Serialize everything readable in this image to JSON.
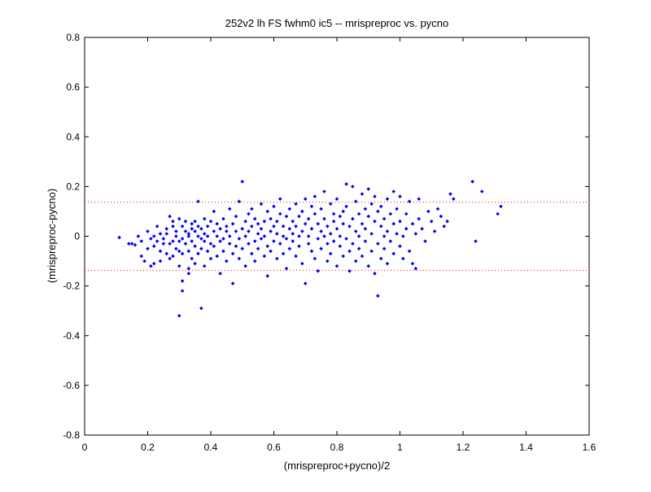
{
  "chart_data": {
    "type": "scatter",
    "title": "252v2 lh FS fwhm0 ic5 -- mrispreproc vs. pycno",
    "xlabel": "(mrispreproc+pycno)/2",
    "ylabel": "(mrispreproc-pycno)",
    "xlim": [
      0,
      1.6
    ],
    "ylim": [
      -0.8,
      0.8
    ],
    "xticks": [
      "0",
      "0.2",
      "0.4",
      "0.6",
      "0.8",
      "1",
      "1.2",
      "1.4",
      "1.6"
    ],
    "yticks": [
      "-0.8",
      "-0.6",
      "-0.4",
      "-0.2",
      "0",
      "0.2",
      "0.4",
      "0.6",
      "0.8"
    ],
    "grid": false,
    "point_color": "#0000ff",
    "reference_line_color": "#ff0000",
    "reference_lines_y": [
      0.137,
      -0.137
    ],
    "series": [
      {
        "points": [
          [
            0.11,
            -0.005
          ],
          [
            0.14,
            -0.03
          ],
          [
            0.15,
            -0.03
          ],
          [
            0.16,
            -0.035
          ],
          [
            0.17,
            0.0
          ],
          [
            0.18,
            -0.02
          ],
          [
            0.18,
            -0.08
          ],
          [
            0.19,
            -0.1
          ],
          [
            0.2,
            0.02
          ],
          [
            0.2,
            -0.05
          ],
          [
            0.21,
            -0.01
          ],
          [
            0.21,
            -0.12
          ],
          [
            0.22,
            0.0
          ],
          [
            0.22,
            -0.04
          ],
          [
            0.22,
            -0.11
          ],
          [
            0.23,
            -0.02
          ],
          [
            0.23,
            0.04
          ],
          [
            0.24,
            -0.06
          ],
          [
            0.24,
            0.01
          ],
          [
            0.24,
            -0.1
          ],
          [
            0.25,
            -0.01
          ],
          [
            0.25,
            -0.03
          ],
          [
            0.26,
            -0.07
          ],
          [
            0.26,
            0.03
          ],
          [
            0.26,
            0.01
          ],
          [
            0.27,
            0.08
          ],
          [
            0.27,
            -0.03
          ],
          [
            0.27,
            -0.09
          ],
          [
            0.28,
            0.04
          ],
          [
            0.28,
            -0.02
          ],
          [
            0.28,
            -0.08
          ],
          [
            0.28,
            0.06
          ],
          [
            0.29,
            0.0
          ],
          [
            0.29,
            -0.05
          ],
          [
            0.29,
            0.02
          ],
          [
            0.3,
            -0.06
          ],
          [
            0.3,
            0.07
          ],
          [
            0.3,
            -0.02
          ],
          [
            0.3,
            -0.12
          ],
          [
            0.3,
            -0.32
          ],
          [
            0.31,
            0.04
          ],
          [
            0.31,
            -0.01
          ],
          [
            0.31,
            -0.07
          ],
          [
            0.31,
            -0.18
          ],
          [
            0.31,
            -0.22
          ],
          [
            0.32,
            0.02
          ],
          [
            0.32,
            -0.03
          ],
          [
            0.32,
            0.06
          ],
          [
            0.33,
            -0.06
          ],
          [
            0.33,
            0.01
          ],
          [
            0.33,
            0.0
          ],
          [
            0.33,
            -0.13
          ],
          [
            0.33,
            -0.15
          ],
          [
            0.34,
            0.05
          ],
          [
            0.34,
            -0.02
          ],
          [
            0.34,
            0.03
          ],
          [
            0.34,
            -0.09
          ],
          [
            0.35,
            0.02
          ],
          [
            0.35,
            -0.04
          ],
          [
            0.35,
            0.06
          ],
          [
            0.35,
            -0.11
          ],
          [
            0.36,
            0.0
          ],
          [
            0.36,
            0.04
          ],
          [
            0.36,
            -0.07
          ],
          [
            0.36,
            0.14
          ],
          [
            0.37,
            -0.01
          ],
          [
            0.37,
            0.03
          ],
          [
            0.37,
            -0.05
          ],
          [
            0.37,
            -0.29
          ],
          [
            0.38,
            0.07
          ],
          [
            0.38,
            -0.02
          ],
          [
            0.38,
            0.01
          ],
          [
            0.38,
            -0.12
          ],
          [
            0.39,
            0.04
          ],
          [
            0.39,
            -0.06
          ],
          [
            0.39,
            0.0
          ],
          [
            0.4,
            0.06
          ],
          [
            0.4,
            -0.03
          ],
          [
            0.4,
            -0.09
          ],
          [
            0.41,
            0.02
          ],
          [
            0.41,
            0.1
          ],
          [
            0.41,
            -0.04
          ],
          [
            0.42,
            0.0
          ],
          [
            0.42,
            0.05
          ],
          [
            0.42,
            -0.08
          ],
          [
            0.43,
            0.03
          ],
          [
            0.43,
            -0.02
          ],
          [
            0.43,
            -0.15
          ],
          [
            0.44,
            0.07
          ],
          [
            0.44,
            -0.01
          ],
          [
            0.44,
            -0.06
          ],
          [
            0.45,
            0.02
          ],
          [
            0.45,
            -0.1
          ],
          [
            0.45,
            0.04
          ],
          [
            0.46,
            0.11
          ],
          [
            0.46,
            -0.03
          ],
          [
            0.46,
            0.0
          ],
          [
            0.47,
            0.05
          ],
          [
            0.47,
            -0.07
          ],
          [
            0.47,
            -0.19
          ],
          [
            0.48,
            0.02
          ],
          [
            0.48,
            -0.04
          ],
          [
            0.48,
            0.08
          ],
          [
            0.49,
            -0.01
          ],
          [
            0.49,
            0.14
          ],
          [
            0.49,
            -0.09
          ],
          [
            0.5,
            0.03
          ],
          [
            0.5,
            0.22
          ],
          [
            0.5,
            -0.05
          ],
          [
            0.51,
            0.06
          ],
          [
            0.51,
            0.0
          ],
          [
            0.51,
            -0.12
          ],
          [
            0.52,
            0.09
          ],
          [
            0.52,
            -0.03
          ],
          [
            0.52,
            0.02
          ],
          [
            0.53,
            -0.07
          ],
          [
            0.53,
            0.04
          ],
          [
            0.53,
            0.11
          ],
          [
            0.54,
            -0.02
          ],
          [
            0.54,
            0.07
          ],
          [
            0.54,
            -0.1
          ],
          [
            0.55,
            0.01
          ],
          [
            0.55,
            0.05
          ],
          [
            0.55,
            -0.05
          ],
          [
            0.56,
            0.13
          ],
          [
            0.56,
            -0.01
          ],
          [
            0.56,
            0.03
          ],
          [
            0.57,
            -0.08
          ],
          [
            0.57,
            0.06
          ],
          [
            0.57,
            0.0
          ],
          [
            0.58,
            0.1
          ],
          [
            0.58,
            -0.04
          ],
          [
            0.58,
            -0.16
          ],
          [
            0.59,
            0.02
          ],
          [
            0.59,
            0.07
          ],
          [
            0.59,
            -0.06
          ],
          [
            0.6,
            0.04
          ],
          [
            0.6,
            -0.02
          ],
          [
            0.6,
            0.12
          ],
          [
            0.61,
            0.01
          ],
          [
            0.61,
            -0.09
          ],
          [
            0.61,
            0.06
          ],
          [
            0.62,
            -0.03
          ],
          [
            0.62,
            0.09
          ],
          [
            0.62,
            0.15
          ],
          [
            0.63,
            0.0
          ],
          [
            0.63,
            -0.07
          ],
          [
            0.63,
            0.04
          ],
          [
            0.64,
            0.08
          ],
          [
            0.64,
            -0.01
          ],
          [
            0.64,
            -0.13
          ],
          [
            0.65,
            0.03
          ],
          [
            0.65,
            0.11
          ],
          [
            0.65,
            -0.05
          ],
          [
            0.66,
            0.06
          ],
          [
            0.66,
            -0.02
          ],
          [
            0.66,
            0.01
          ],
          [
            0.67,
            0.13
          ],
          [
            0.67,
            -0.08
          ],
          [
            0.67,
            0.04
          ],
          [
            0.68,
            0.0
          ],
          [
            0.68,
            0.08
          ],
          [
            0.68,
            -0.04
          ],
          [
            0.69,
            0.1
          ],
          [
            0.69,
            -0.11
          ],
          [
            0.69,
            0.02
          ],
          [
            0.7,
            0.05
          ],
          [
            0.7,
            -0.19
          ],
          [
            0.7,
            0.15
          ],
          [
            0.71,
            -0.03
          ],
          [
            0.71,
            0.07
          ],
          [
            0.71,
            0.0
          ],
          [
            0.72,
            0.12
          ],
          [
            0.72,
            -0.06
          ],
          [
            0.72,
            0.03
          ],
          [
            0.73,
            0.09
          ],
          [
            0.73,
            -0.09
          ],
          [
            0.73,
            0.16
          ],
          [
            0.74,
            -0.01
          ],
          [
            0.74,
            0.05
          ],
          [
            0.74,
            -0.14
          ],
          [
            0.75,
            0.02
          ],
          [
            0.75,
            0.11
          ],
          [
            0.75,
            -0.05
          ],
          [
            0.76,
            0.07
          ],
          [
            0.76,
            0.0
          ],
          [
            0.76,
            0.18
          ],
          [
            0.77,
            -0.03
          ],
          [
            0.77,
            0.04
          ],
          [
            0.77,
            -0.1
          ],
          [
            0.78,
            0.13
          ],
          [
            0.78,
            0.01
          ],
          [
            0.78,
            -0.07
          ],
          [
            0.79,
            0.06
          ],
          [
            0.79,
            -0.02
          ],
          [
            0.79,
            0.09
          ],
          [
            0.8,
            0.03
          ],
          [
            0.8,
            -0.12
          ],
          [
            0.8,
            0.15
          ],
          [
            0.81,
            -0.04
          ],
          [
            0.81,
            0.08
          ],
          [
            0.81,
            0.0
          ],
          [
            0.82,
            0.1
          ],
          [
            0.82,
            -0.08
          ],
          [
            0.82,
            0.05
          ],
          [
            0.83,
            0.21
          ],
          [
            0.83,
            -0.01
          ],
          [
            0.83,
            0.12
          ],
          [
            0.84,
            -0.06
          ],
          [
            0.84,
            0.04
          ],
          [
            0.84,
            -0.14
          ],
          [
            0.85,
            0.07
          ],
          [
            0.85,
            0.2
          ],
          [
            0.85,
            -0.03
          ],
          [
            0.86,
            0.02
          ],
          [
            0.86,
            0.14
          ],
          [
            0.86,
            -0.1
          ],
          [
            0.87,
            0.09
          ],
          [
            0.87,
            -0.05
          ],
          [
            0.87,
            0.0
          ],
          [
            0.88,
            0.17
          ],
          [
            0.88,
            0.05
          ],
          [
            0.88,
            -0.08
          ],
          [
            0.89,
            0.11
          ],
          [
            0.89,
            -0.02
          ],
          [
            0.89,
            0.03
          ],
          [
            0.9,
            0.08
          ],
          [
            0.9,
            -0.12
          ],
          [
            0.9,
            0.19
          ],
          [
            0.91,
            0.01
          ],
          [
            0.91,
            -0.06
          ],
          [
            0.91,
            0.13
          ],
          [
            0.92,
            0.06
          ],
          [
            0.92,
            -0.15
          ],
          [
            0.92,
            0.16
          ],
          [
            0.93,
            -0.03
          ],
          [
            0.93,
            0.1
          ],
          [
            0.93,
            -0.24
          ],
          [
            0.94,
            0.04
          ],
          [
            0.94,
            -0.09
          ],
          [
            0.94,
            0.12
          ],
          [
            0.95,
            0.0
          ],
          [
            0.95,
            0.07
          ],
          [
            0.95,
            -0.05
          ],
          [
            0.96,
            0.15
          ],
          [
            0.96,
            0.02
          ],
          [
            0.96,
            -0.11
          ],
          [
            0.97,
            0.09
          ],
          [
            0.97,
            -0.02
          ],
          [
            0.98,
            0.05
          ],
          [
            0.98,
            0.18
          ],
          [
            0.98,
            -0.07
          ],
          [
            0.99,
            0.11
          ],
          [
            0.99,
            0.01
          ],
          [
            1.0,
            0.06
          ],
          [
            1.0,
            -0.04
          ],
          [
            1.0,
            0.16
          ],
          [
            1.01,
            0.0
          ],
          [
            1.01,
            -0.09
          ],
          [
            1.02,
            0.09
          ],
          [
            1.02,
            0.03
          ],
          [
            1.03,
            -0.06
          ],
          [
            1.03,
            0.14
          ],
          [
            1.04,
            0.05
          ],
          [
            1.04,
            -0.11
          ],
          [
            1.05,
            0.01
          ],
          [
            1.05,
            -0.13
          ],
          [
            1.06,
            0.07
          ],
          [
            1.06,
            0.15
          ],
          [
            1.07,
            0.03
          ],
          [
            1.08,
            -0.02
          ],
          [
            1.09,
            0.1
          ],
          [
            1.1,
            0.06
          ],
          [
            1.11,
            0.02
          ],
          [
            1.12,
            0.11
          ],
          [
            1.13,
            0.08
          ],
          [
            1.14,
            0.04
          ],
          [
            1.15,
            0.06
          ],
          [
            1.16,
            0.17
          ],
          [
            1.17,
            0.15
          ],
          [
            1.23,
            0.22
          ],
          [
            1.24,
            -0.02
          ],
          [
            1.26,
            0.18
          ],
          [
            1.31,
            0.09
          ],
          [
            1.32,
            0.12
          ]
        ]
      }
    ]
  }
}
